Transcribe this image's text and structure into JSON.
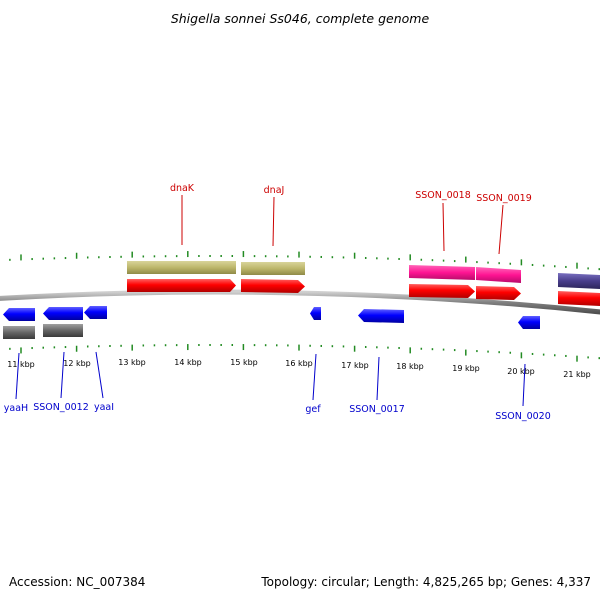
{
  "title": "Shigella sonnei Ss046, complete genome",
  "footer": {
    "accession": "Accession: NC_007384",
    "topology": "Topology: circular; Length: 4,825,265 bp; Genes: 4,337"
  },
  "colors": {
    "forward_label": "#cc0000",
    "reverse_label": "#0000cc",
    "tick": "#228B22",
    "backbone": "#808080",
    "cds_forward": "#ff0000",
    "gene_tan": "#bdb76b",
    "gene_pink": "#ff1493",
    "gene_purple": "#483d8b",
    "cds_reverse": "#0000ff",
    "gene_gray": "#666666"
  },
  "scale_labels": [
    "11 kbp",
    "12 kbp",
    "13 kbp",
    "14 kbp",
    "15 kbp",
    "16 kbp",
    "17 kbp",
    "18 kbp",
    "19 kbp",
    "20 kbp",
    "21 kbp"
  ],
  "forward_genes": [
    {
      "name": "dnaK"
    },
    {
      "name": "dnaJ"
    },
    {
      "name": "SSON_0018"
    },
    {
      "name": "SSON_0019"
    }
  ],
  "reverse_genes": [
    {
      "name": "yaaH"
    },
    {
      "name": "SSON_0012"
    },
    {
      "name": "yaaI"
    },
    {
      "name": "gef"
    },
    {
      "name": "SSON_0017"
    },
    {
      "name": "SSON_0020"
    }
  ]
}
